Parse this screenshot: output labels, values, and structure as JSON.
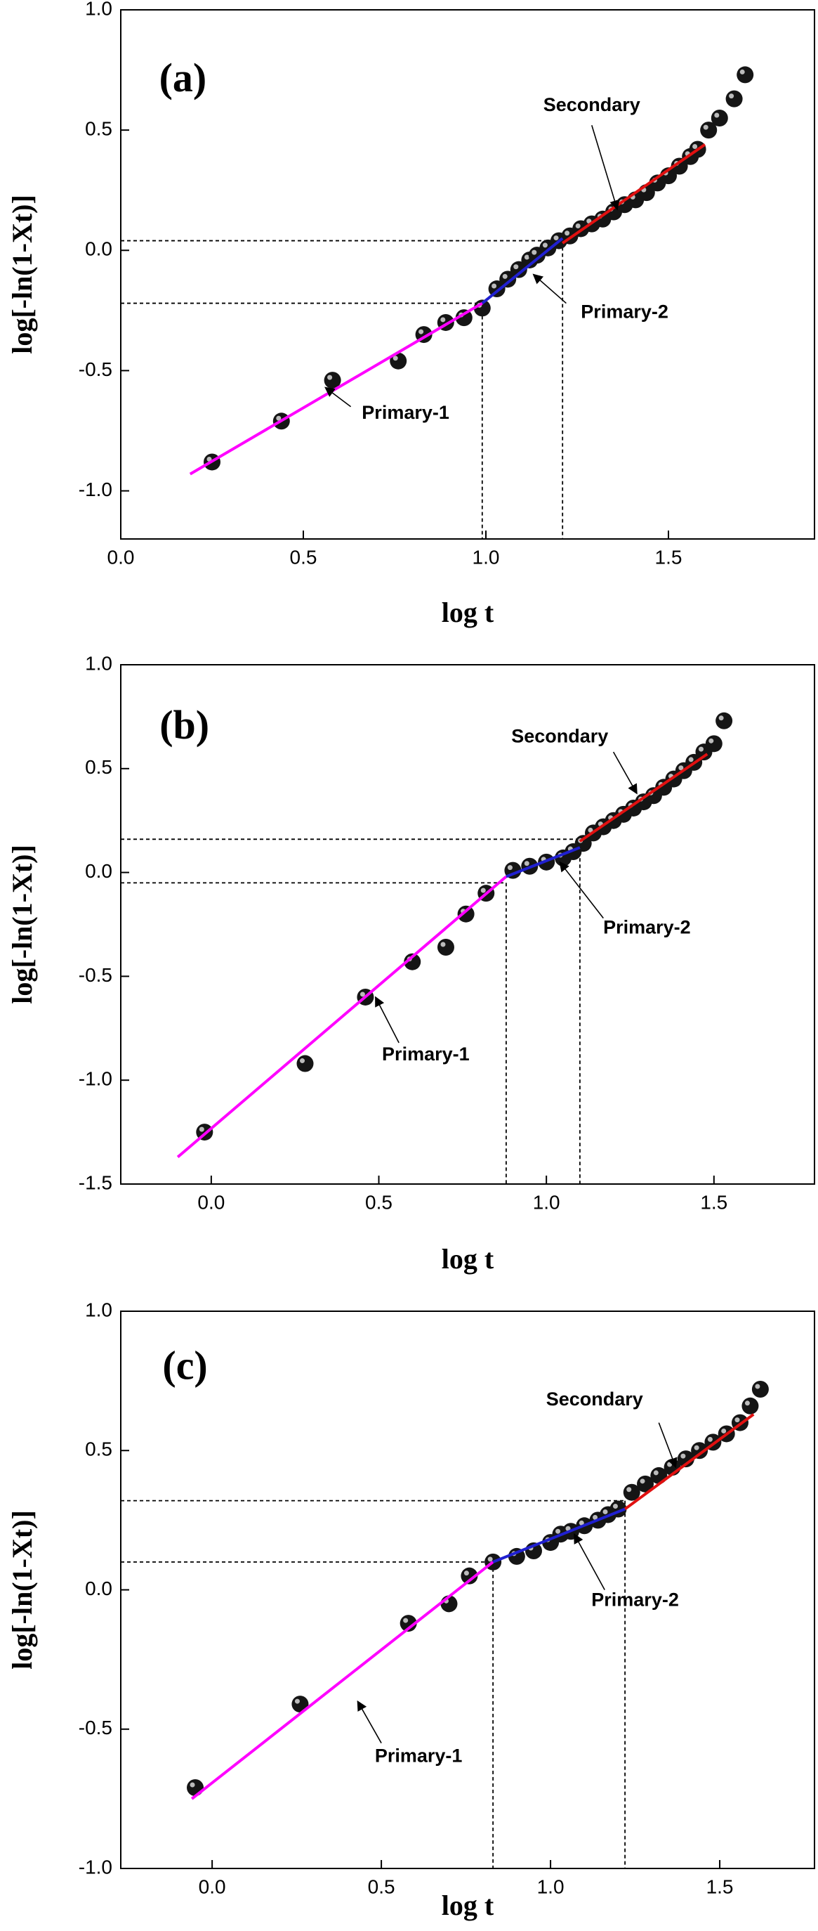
{
  "chart_data": [
    {
      "type": "scatter",
      "label": "(a)",
      "xlabel": "log t",
      "ylabel": "log[-ln(1-Xt)]",
      "color": "#151515",
      "x": [
        0.25,
        0.44,
        0.58,
        0.76,
        0.83,
        0.89,
        0.94,
        0.99,
        1.03,
        1.06,
        1.09,
        1.12,
        1.14,
        1.17,
        1.2,
        1.23,
        1.26,
        1.29,
        1.32,
        1.35,
        1.38,
        1.41,
        1.44,
        1.47,
        1.5,
        1.53,
        1.56,
        1.58,
        1.61,
        1.64,
        1.68,
        1.71
      ],
      "values": [
        -0.88,
        -0.71,
        -0.54,
        -0.46,
        -0.35,
        -0.3,
        -0.28,
        -0.24,
        -0.16,
        -0.12,
        -0.08,
        -0.04,
        -0.02,
        0.01,
        0.04,
        0.06,
        0.09,
        0.11,
        0.13,
        0.16,
        0.19,
        0.21,
        0.24,
        0.28,
        0.31,
        0.35,
        0.39,
        0.42,
        0.5,
        0.55,
        0.63,
        0.73
      ],
      "fits": [
        {
          "name": "Primary-1",
          "color": "#ff00ff",
          "x": [
            0.19,
            0.99
          ],
          "values": [
            -0.93,
            -0.22
          ]
        },
        {
          "name": "Primary-2",
          "color": "#2020d0",
          "x": [
            0.99,
            1.21
          ],
          "values": [
            -0.22,
            0.05
          ]
        },
        {
          "name": "Secondary",
          "color": "#e01010",
          "x": [
            1.21,
            1.6
          ],
          "values": [
            0.03,
            0.44
          ]
        }
      ],
      "guides": [
        {
          "x": 1.21,
          "y": 0.04
        },
        {
          "x": 0.99,
          "y": -0.22
        }
      ],
      "xlim": [
        0,
        1.9
      ],
      "ylim": [
        -1.2,
        1.0
      ],
      "xticks": [
        {
          "value": 0,
          "label": "0.0"
        },
        {
          "value": 0.5,
          "label": "0.5"
        },
        {
          "value": 1,
          "label": "1.0"
        },
        {
          "value": 1.5,
          "label": "1.5"
        }
      ],
      "yticks": [
        {
          "value": -1,
          "label": "-1.0"
        },
        {
          "value": -0.5,
          "label": "-0.5"
        },
        {
          "value": 0,
          "label": "0.0"
        },
        {
          "value": 0.5,
          "label": "0.5"
        },
        {
          "value": 1,
          "label": "1.0"
        }
      ]
    },
    {
      "type": "scatter",
      "label": "(b)",
      "xlabel": "log t",
      "ylabel": "log[-ln(1-Xt)]",
      "color": "#151515",
      "x": [
        -0.02,
        0.28,
        0.46,
        0.6,
        0.7,
        0.76,
        0.82,
        0.9,
        0.95,
        1.0,
        1.05,
        1.08,
        1.11,
        1.14,
        1.17,
        1.2,
        1.23,
        1.26,
        1.29,
        1.32,
        1.35,
        1.38,
        1.41,
        1.44,
        1.47,
        1.5,
        1.53
      ],
      "values": [
        -1.25,
        -0.92,
        -0.6,
        -0.43,
        -0.36,
        -0.2,
        -0.1,
        0.01,
        0.03,
        0.05,
        0.07,
        0.1,
        0.14,
        0.19,
        0.22,
        0.25,
        0.28,
        0.31,
        0.34,
        0.37,
        0.41,
        0.45,
        0.49,
        0.53,
        0.58,
        0.62,
        0.73
      ],
      "fits": [
        {
          "name": "Primary-1",
          "color": "#ff00ff",
          "x": [
            -0.1,
            0.88
          ],
          "values": [
            -1.37,
            -0.02
          ]
        },
        {
          "name": "Primary-2",
          "color": "#2020d0",
          "x": [
            0.88,
            1.1
          ],
          "values": [
            -0.02,
            0.12
          ]
        },
        {
          "name": "Secondary",
          "color": "#e01010",
          "x": [
            1.1,
            1.48
          ],
          "values": [
            0.15,
            0.57
          ]
        }
      ],
      "guides": [
        {
          "x": 1.1,
          "y": 0.16
        },
        {
          "x": 0.88,
          "y": -0.05
        }
      ],
      "xlim": [
        -0.27,
        1.8
      ],
      "ylim": [
        -1.5,
        1.0
      ],
      "xticks": [
        {
          "value": 0,
          "label": "0.0"
        },
        {
          "value": 0.5,
          "label": "0.5"
        },
        {
          "value": 1,
          "label": "1.0"
        },
        {
          "value": 1.5,
          "label": "1.5"
        }
      ],
      "yticks": [
        {
          "value": -1.5,
          "label": "-1.5"
        },
        {
          "value": -1,
          "label": "-1.0"
        },
        {
          "value": -0.5,
          "label": "-0.5"
        },
        {
          "value": 0,
          "label": "0.0"
        },
        {
          "value": 0.5,
          "label": "0.5"
        },
        {
          "value": 1,
          "label": "1.0"
        }
      ]
    },
    {
      "type": "scatter",
      "label": "(c)",
      "xlabel": "log t",
      "ylabel": "log[-ln(1-Xt)]",
      "color": "#151515",
      "x": [
        -0.05,
        0.26,
        0.58,
        0.7,
        0.76,
        0.83,
        0.9,
        0.95,
        1.0,
        1.03,
        1.06,
        1.1,
        1.14,
        1.17,
        1.2,
        1.24,
        1.28,
        1.32,
        1.36,
        1.4,
        1.44,
        1.48,
        1.52,
        1.56,
        1.59,
        1.62
      ],
      "values": [
        -0.71,
        -0.41,
        -0.12,
        -0.05,
        0.05,
        0.1,
        0.12,
        0.14,
        0.17,
        0.2,
        0.21,
        0.23,
        0.25,
        0.27,
        0.29,
        0.35,
        0.38,
        0.41,
        0.44,
        0.47,
        0.5,
        0.53,
        0.56,
        0.6,
        0.66,
        0.72
      ],
      "fits": [
        {
          "name": "Primary-1",
          "color": "#ff00ff",
          "x": [
            -0.06,
            0.83
          ],
          "values": [
            -0.75,
            0.1
          ]
        },
        {
          "name": "Primary-2",
          "color": "#2020d0",
          "x": [
            0.83,
            1.22
          ],
          "values": [
            0.1,
            0.29
          ]
        },
        {
          "name": "Secondary",
          "color": "#e01010",
          "x": [
            1.22,
            1.6
          ],
          "values": [
            0.29,
            0.63
          ]
        }
      ],
      "guides": [
        {
          "x": 1.22,
          "y": 0.32
        },
        {
          "x": 0.83,
          "y": 0.1
        }
      ],
      "xlim": [
        -0.27,
        1.78
      ],
      "ylim": [
        -1.0,
        1.0
      ],
      "xticks": [
        {
          "value": 0,
          "label": "0.0"
        },
        {
          "value": 0.5,
          "label": "0.5"
        },
        {
          "value": 1,
          "label": "1.0"
        },
        {
          "value": 1.5,
          "label": "1.5"
        }
      ],
      "yticks": [
        {
          "value": -1,
          "label": "-1.0"
        },
        {
          "value": -0.5,
          "label": "-0.5"
        },
        {
          "value": 0,
          "label": "0.0"
        },
        {
          "value": 0.5,
          "label": "0.5"
        },
        {
          "value": 1,
          "label": "1.0"
        }
      ]
    }
  ]
}
